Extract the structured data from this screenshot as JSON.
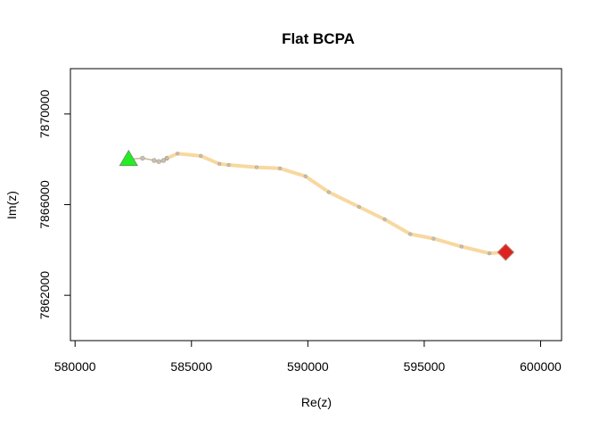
{
  "chart_data": {
    "type": "line",
    "title": "Flat BCPA",
    "xlabel": "Re(z)",
    "ylabel": "Im(z)",
    "xlim": [
      579800,
      600900
    ],
    "ylim": [
      7860000,
      7872000
    ],
    "xticks": [
      580000,
      585000,
      590000,
      595000,
      600000
    ],
    "yticks": [
      7862000,
      7866000,
      7870000
    ],
    "x_tick_labels": [
      "580000",
      "585000",
      "590000",
      "595000",
      "600000"
    ],
    "y_tick_labels": [
      "7862000",
      "7866000",
      "7870000"
    ],
    "grid": false,
    "legend": "none",
    "colors": {
      "segment_a": "#c8b89a",
      "segment_b": "#f8d8a0",
      "points": "#c8c0b0",
      "start_marker": "#22ee22",
      "end_marker": "#dd2222",
      "end_marker_edge": "#bb7766"
    },
    "series": [
      {
        "x": [
          582300,
          582900,
          583400,
          583600,
          583800,
          583950
        ],
        "y": [
          7868000,
          7868050,
          7867950,
          7867900,
          7867950,
          7868050
        ]
      },
      {
        "x": [
          583950,
          584400,
          585400,
          586200,
          586600,
          587800,
          588800,
          589900,
          590900,
          592200,
          593300,
          594400,
          595400,
          596600,
          597800,
          598500
        ],
        "y": [
          7868050,
          7868250,
          7868150,
          7867800,
          7867750,
          7867650,
          7867600,
          7867250,
          7866550,
          7865900,
          7865350,
          7864700,
          7864500,
          7864150,
          7863850,
          7863900
        ]
      }
    ],
    "start_point": {
      "x": 582300,
      "y": 7868000,
      "shape": "triangle"
    },
    "end_point": {
      "x": 598500,
      "y": 7863900,
      "shape": "diamond"
    }
  }
}
